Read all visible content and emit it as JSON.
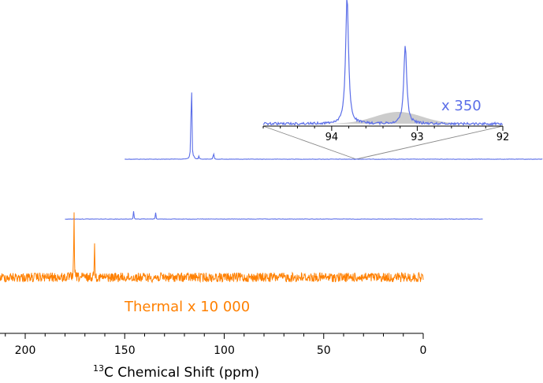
{
  "chart_data": {
    "type": "line",
    "xlabel_sup": "13",
    "xlabel_main": "C Chemical Shift (ppm)",
    "x_ticks": [
      "200",
      "150",
      "100",
      "50",
      "0"
    ],
    "xlim": [
      210,
      0
    ],
    "colors": {
      "hyperpolarized": "#5b6ee8",
      "thermal": "#ff8000",
      "inset_fill": "#cccccc"
    },
    "series": [
      {
        "color": "#5b6ee8",
        "x_range": [
          150,
          -60
        ],
        "peaks": [
          {
            "x": 116.5,
            "height": 1.0
          },
          {
            "x": 115.3,
            "height": 0.018
          },
          {
            "x": 112.7,
            "height": 0.025
          },
          {
            "x": 105.4,
            "height": 0.07
          }
        ]
      },
      {
        "color": "#5b6ee8",
        "x_range": [
          180,
          -30
        ],
        "peaks": [
          {
            "x": 145.5,
            "height": 0.5
          },
          {
            "x": 141.0,
            "height": 0.05
          },
          {
            "x": 134.5,
            "height": 0.4
          }
        ]
      },
      {
        "annotation": "Thermal x 10 000",
        "color": "#ff8000",
        "x_range": [
          215,
          0
        ],
        "peaks": [
          {
            "x": 175.5,
            "height": 0.95
          },
          {
            "x": 165.2,
            "height": 0.55
          }
        ]
      }
    ],
    "inset": {
      "annotation": "x 350",
      "x_ticks": [
        "94",
        "93",
        "92"
      ],
      "xlim": [
        94.8,
        92.0
      ],
      "peaks": [
        {
          "x": 93.82,
          "height": 1.0
        },
        {
          "x": 93.14,
          "height": 0.62
        }
      ],
      "shaded_hump_center": 93.22
    }
  }
}
